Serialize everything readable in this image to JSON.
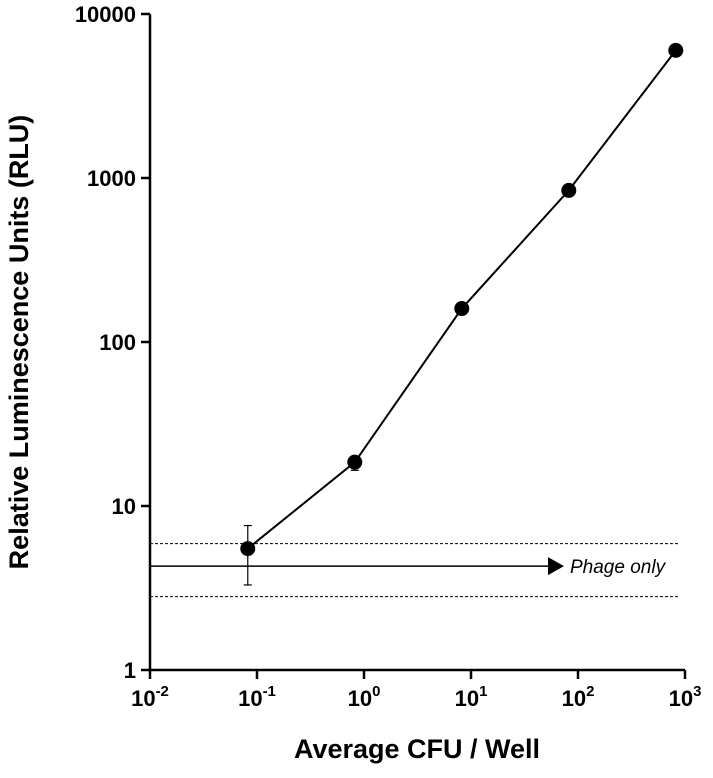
{
  "chart_data": {
    "type": "scatter",
    "xlabel": "Average CFU / Well",
    "ylabel": "Relative Luminescence Units (RLU)",
    "x_scale": "log",
    "y_scale": "log",
    "xlim": [
      0.01,
      1000
    ],
    "ylim": [
      1,
      10000
    ],
    "x_ticks": [
      {
        "value": 0.01,
        "base": "10",
        "exp": "-2"
      },
      {
        "value": 0.1,
        "base": "10",
        "exp": "-1"
      },
      {
        "value": 1,
        "base": "10",
        "exp": "0"
      },
      {
        "value": 10,
        "base": "10",
        "exp": "1"
      },
      {
        "value": 100,
        "base": "10",
        "exp": "2"
      },
      {
        "value": 1000,
        "base": "10",
        "exp": "3"
      }
    ],
    "y_ticks": [
      {
        "value": 1,
        "label": "1"
      },
      {
        "value": 10,
        "label": "10"
      },
      {
        "value": 100,
        "label": "100"
      },
      {
        "value": 1000,
        "label": "1000"
      },
      {
        "value": 10000,
        "label": "10000"
      }
    ],
    "grid": false,
    "series": [
      {
        "x": [
          0.082,
          0.82,
          8.2,
          82,
          820
        ],
        "y": [
          5.5,
          18.5,
          160,
          840,
          6000
        ],
        "y_err_low": [
          3.3,
          16.5,
          160,
          840,
          6000
        ],
        "y_err_high": [
          7.6,
          19.8,
          160,
          840,
          6000
        ],
        "color": "#000000",
        "marker": "circle",
        "connected": true
      }
    ],
    "reference_band": {
      "mean": 4.3,
      "low": 2.8,
      "high": 5.9,
      "label": "Phage only",
      "style": "dashed"
    }
  }
}
